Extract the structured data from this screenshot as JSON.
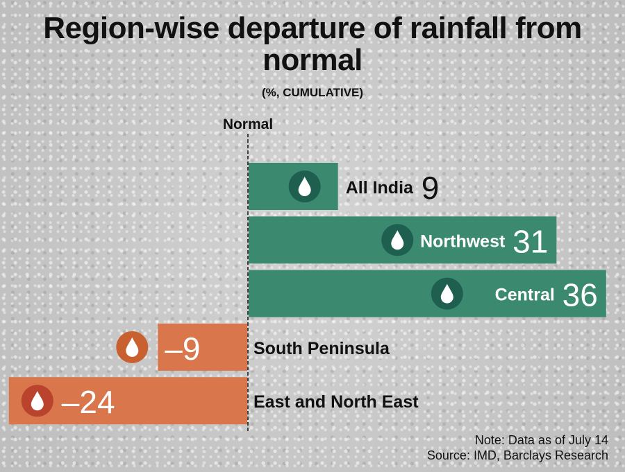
{
  "chart_data": {
    "type": "bar",
    "orientation": "horizontal",
    "title": "Region-wise departure of rainfall from normal",
    "subtitle": "(%, CUMULATIVE)",
    "baseline_label": "Normal",
    "categories": [
      "All India",
      "Northwest",
      "Central",
      "South Peninsula",
      "East and North East"
    ],
    "values": [
      9,
      31,
      36,
      -9,
      -24
    ],
    "xlim": [
      -24,
      36
    ],
    "grid": false,
    "colors": {
      "positive": "#3b8a70",
      "positive_icon": "#1f5f4f",
      "negative": "#d9764b",
      "negative_icon": "#c8612f",
      "negative_icon_dark": "#b9432d"
    }
  },
  "footer": {
    "note": "Note: Data as of July 14",
    "source": "Source: IMD, Barclays Research"
  }
}
